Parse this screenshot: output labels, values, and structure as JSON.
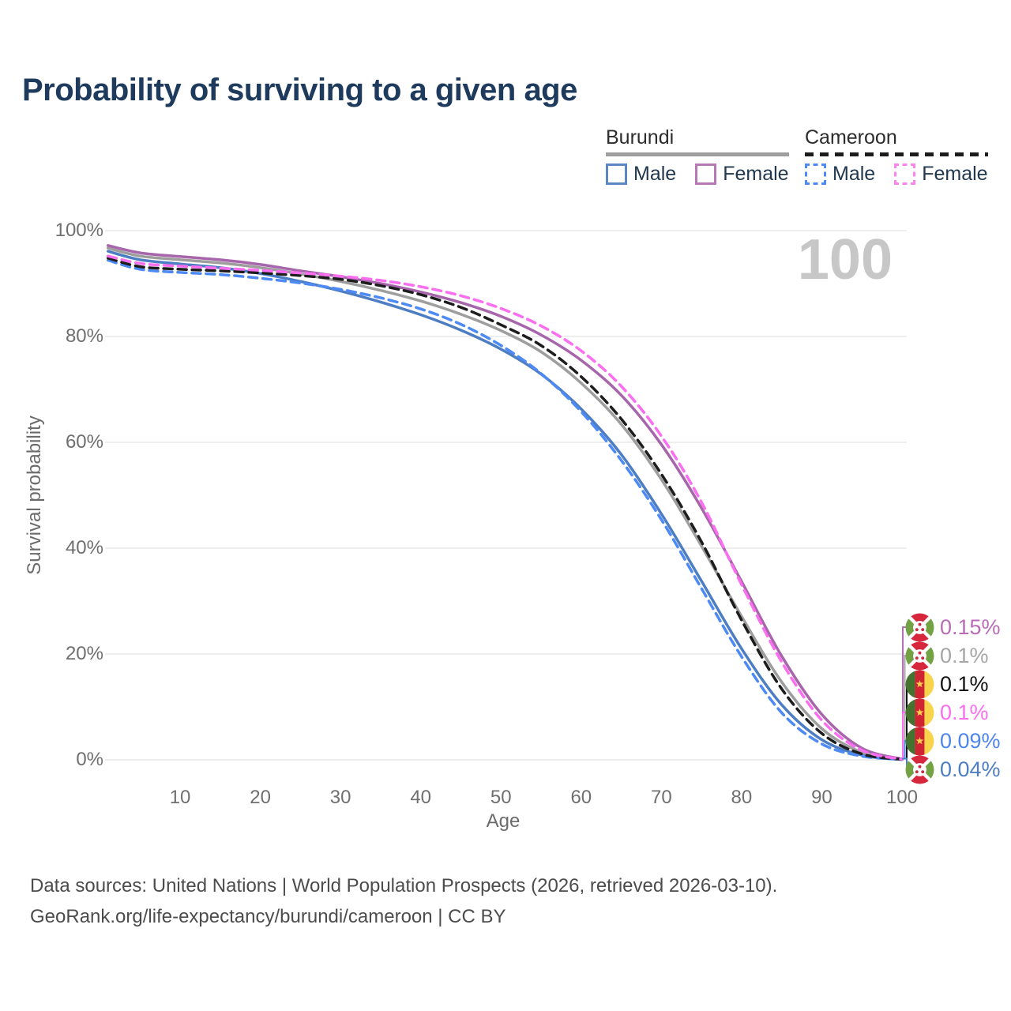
{
  "title": "Probability of surviving to a given age",
  "watermark_age": "100",
  "legend": {
    "groups": [
      {
        "name": "Burundi",
        "line_style": "solid",
        "underline_color": "#9e9e9e",
        "items": [
          {
            "label": "Male",
            "color": "#4d7ec3"
          },
          {
            "label": "Female",
            "color": "#b072b3"
          }
        ]
      },
      {
        "name": "Cameroon",
        "line_style": "dashed",
        "underline_color": "#1c1c1c",
        "items": [
          {
            "label": "Male",
            "color": "#4e8af5"
          },
          {
            "label": "Female",
            "color": "#fb84f0"
          }
        ]
      }
    ]
  },
  "chart_data": {
    "type": "line",
    "title": "Probability of surviving to a given age",
    "xlabel": "Age",
    "ylabel": "Survival probability",
    "xlim": [
      0.6,
      100
    ],
    "ylim": [
      0,
      100
    ],
    "grid": "horizontal-only",
    "x_ticks": [
      10,
      20,
      30,
      40,
      50,
      60,
      70,
      80,
      90,
      100
    ],
    "y_ticks": [
      {
        "label": "0%",
        "value": 0
      },
      {
        "label": "20%",
        "value": 20
      },
      {
        "label": "40%",
        "value": 40
      },
      {
        "label": "60%",
        "value": 60
      },
      {
        "label": "80%",
        "value": 80
      },
      {
        "label": "100%",
        "value": 100
      }
    ],
    "x": [
      1,
      5,
      10,
      15,
      20,
      25,
      30,
      35,
      40,
      45,
      50,
      55,
      60,
      65,
      70,
      75,
      80,
      85,
      90,
      95,
      100
    ],
    "series": [
      {
        "name": "Burundi Male",
        "country": "burundi",
        "sex": "male",
        "color": "#4d7ec3",
        "dashed": false,
        "values": [
          96.1,
          94.5,
          93.7,
          93.0,
          91.9,
          90.4,
          88.6,
          86.5,
          84.1,
          81.2,
          77.6,
          72.9,
          66.3,
          57.7,
          46.5,
          33.8,
          21.0,
          10.4,
          3.8,
          0.9,
          0.04
        ]
      },
      {
        "name": "Burundi Both sexes",
        "country": "burundi",
        "sex": "all",
        "color": "#9e9e9e",
        "dashed": false,
        "values": [
          96.7,
          95.2,
          94.5,
          93.9,
          93.0,
          91.8,
          90.4,
          88.7,
          86.7,
          84.2,
          81.1,
          77.1,
          71.2,
          63.4,
          53.0,
          40.4,
          27.1,
          14.7,
          5.9,
          1.4,
          0.1
        ]
      },
      {
        "name": "Burundi Female",
        "country": "burundi",
        "sex": "female",
        "color": "#a765ab",
        "dashed": false,
        "values": [
          97.2,
          95.8,
          95.1,
          94.5,
          93.6,
          92.4,
          91.3,
          90.0,
          88.4,
          86.4,
          83.8,
          80.3,
          75.5,
          68.9,
          59.6,
          47.6,
          33.7,
          19.6,
          8.6,
          2.2,
          0.15
        ]
      },
      {
        "name": "Cameroon Male",
        "country": "cameroon",
        "sex": "male",
        "color": "#4e8af5",
        "dashed": true,
        "values": [
          94.4,
          92.7,
          92.1,
          91.7,
          91.0,
          90.1,
          88.9,
          87.3,
          85.2,
          82.3,
          78.3,
          73.0,
          65.8,
          56.6,
          45.4,
          32.4,
          19.5,
          8.9,
          3.0,
          0.7,
          0.09
        ]
      },
      {
        "name": "Cameroon Both sexes",
        "country": "cameroon",
        "sex": "all",
        "color": "#1d1d1d",
        "dashed": true,
        "values": [
          94.8,
          93.2,
          92.7,
          92.4,
          92.0,
          91.5,
          90.8,
          89.6,
          87.9,
          85.5,
          82.2,
          78.3,
          72.4,
          64.4,
          54.0,
          41.2,
          26.4,
          13.4,
          5.0,
          1.1,
          0.1
        ]
      },
      {
        "name": "Cameroon Female",
        "country": "cameroon",
        "sex": "female",
        "color": "#fb6ef0",
        "dashed": true,
        "values": [
          95.2,
          93.8,
          93.3,
          92.9,
          92.5,
          92.0,
          91.4,
          90.6,
          89.4,
          87.7,
          85.3,
          82.0,
          77.3,
          70.6,
          61.2,
          48.7,
          33.1,
          18.5,
          7.5,
          1.8,
          0.1
        ]
      }
    ],
    "end_labels": [
      {
        "country": "burundi",
        "text": "0.15%",
        "color": "#b86cb8"
      },
      {
        "country": "burundi",
        "text": "0.1%",
        "color": "#a6a6a6"
      },
      {
        "country": "cameroon",
        "text": "0.1%",
        "color": "#141414"
      },
      {
        "country": "cameroon",
        "text": "0.1%",
        "color": "#fb6ef0"
      },
      {
        "country": "cameroon",
        "text": "0.09%",
        "color": "#4e86ee"
      },
      {
        "country": "burundi",
        "text": "0.04%",
        "color": "#4d7ec3"
      }
    ]
  },
  "footer": {
    "line1": "Data sources: United Nations | World Population Prospects (2026, retrieved 2026-03-10).",
    "line2": "GeoRank.org/life-expectancy/burundi/cameroon | CC BY"
  }
}
